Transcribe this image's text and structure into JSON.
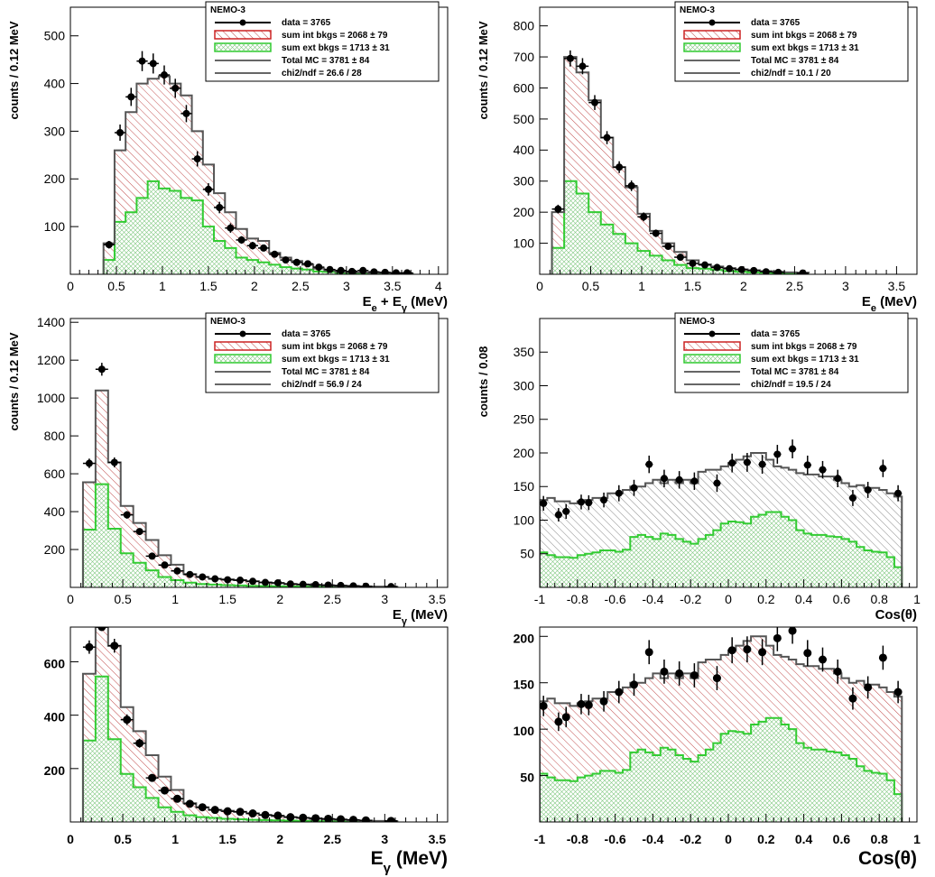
{
  "legend": {
    "title": "NEMO-3",
    "entries": {
      "data": "data = 3765",
      "int": "sum int bkgs = 2068 ± 79",
      "ext": "sum ext bkgs = 1713 ± 31",
      "total": "Total MC = 3781 ± 84"
    }
  },
  "colors": {
    "data": "#000000",
    "int_hatch": "#b22222",
    "ext_hatch": "#2e9e2e",
    "ext_line": "#33cc33",
    "total_line": "#555555"
  },
  "chart_data": [
    {
      "type": "bar",
      "id": "p1",
      "ylabel": "counts / 0.12 MeV",
      "xlabel_main": "E",
      "xlabel_parts": [
        [
          "E",
          "e",
          ""
        ],
        [
          " + E",
          "γ",
          " (MeV)"
        ]
      ],
      "xlim": [
        0,
        4.1
      ],
      "ylim": [
        0,
        560
      ],
      "xticks": [
        0,
        0.5,
        1,
        1.5,
        2,
        2.5,
        3,
        3.5,
        4
      ],
      "xtick_labels": [
        "0",
        "0.5",
        "1",
        "1.5",
        "2",
        "2.5",
        "3",
        "3.5",
        "4"
      ],
      "yticks": [
        100,
        200,
        300,
        400,
        500
      ],
      "chi2": "chi2/ndf = 26.6 / 28",
      "int_style": "diag",
      "bins": {
        "edges": [
          0.36,
          0.48,
          0.6,
          0.72,
          0.84,
          0.96,
          1.08,
          1.2,
          1.32,
          1.44,
          1.56,
          1.68,
          1.8,
          1.92,
          2.04,
          2.16,
          2.28,
          2.4,
          2.52,
          2.64,
          2.76,
          2.88,
          3.0,
          3.12,
          3.24,
          3.36,
          3.48,
          3.6,
          3.72
        ],
        "total": [
          65,
          260,
          340,
          400,
          410,
          415,
          400,
          375,
          300,
          230,
          170,
          130,
          95,
          75,
          70,
          45,
          35,
          28,
          20,
          12,
          8,
          5,
          4,
          4,
          3,
          3,
          2,
          2
        ],
        "ext": [
          30,
          110,
          130,
          160,
          195,
          180,
          175,
          160,
          155,
          100,
          70,
          55,
          35,
          30,
          25,
          20,
          15,
          12,
          10,
          6,
          5,
          3,
          2,
          2,
          2,
          1,
          1,
          1
        ]
      },
      "data_points": {
        "x": [
          0.42,
          0.54,
          0.66,
          0.78,
          0.9,
          1.02,
          1.14,
          1.26,
          1.38,
          1.5,
          1.62,
          1.74,
          1.86,
          1.98,
          2.1,
          2.22,
          2.34,
          2.46,
          2.58,
          2.7,
          2.82,
          2.94,
          3.06,
          3.18,
          3.3,
          3.42,
          3.54,
          3.66
        ],
        "y": [
          62,
          297,
          372,
          447,
          442,
          418,
          390,
          337,
          242,
          178,
          140,
          97,
          72,
          60,
          55,
          42,
          30,
          25,
          22,
          15,
          10,
          8,
          6,
          8,
          5,
          4,
          3,
          3
        ],
        "err": [
          8,
          17,
          19,
          21,
          21,
          20,
          20,
          18,
          16,
          13,
          12,
          10,
          8,
          8,
          7,
          6,
          5,
          5,
          5,
          4,
          3,
          3,
          3,
          3,
          2,
          2,
          2,
          2
        ]
      },
      "show_legend": true
    },
    {
      "type": "bar",
      "id": "p2",
      "ylabel": "counts / 0.12 MeV",
      "xlabel_parts": [
        [
          "E",
          "e",
          " (MeV)"
        ]
      ],
      "xlim": [
        0,
        3.7
      ],
      "ylim": [
        0,
        860
      ],
      "xticks": [
        0,
        0.5,
        1,
        1.5,
        2,
        2.5,
        3,
        3.5
      ],
      "xtick_labels": [
        "0",
        "0.5",
        "1",
        "1.5",
        "2",
        "2.5",
        "3",
        "3.5"
      ],
      "yticks": [
        100,
        200,
        300,
        400,
        500,
        600,
        700,
        800
      ],
      "chi2": "chi2/ndf = 10.1 / 20",
      "int_style": "diag",
      "bins": {
        "edges": [
          0.12,
          0.24,
          0.36,
          0.48,
          0.6,
          0.72,
          0.84,
          0.96,
          1.08,
          1.2,
          1.32,
          1.44,
          1.56,
          1.68,
          1.8,
          1.92,
          2.04,
          2.16,
          2.28,
          2.4,
          2.52,
          2.64
        ],
        "total": [
          200,
          700,
          650,
          560,
          440,
          345,
          280,
          195,
          140,
          100,
          72,
          45,
          32,
          25,
          20,
          16,
          13,
          10,
          8,
          6,
          5,
          4
        ],
        "ext": [
          85,
          300,
          260,
          200,
          160,
          130,
          100,
          75,
          60,
          45,
          30,
          20,
          18,
          14,
          10,
          8,
          6,
          5,
          4,
          3,
          2,
          2
        ]
      },
      "data_points": {
        "x": [
          0.18,
          0.3,
          0.42,
          0.54,
          0.66,
          0.78,
          0.9,
          1.02,
          1.14,
          1.26,
          1.38,
          1.5,
          1.62,
          1.74,
          1.86,
          1.98,
          2.1,
          2.22,
          2.34,
          2.58
        ],
        "y": [
          210,
          695,
          670,
          553,
          440,
          345,
          285,
          185,
          132,
          90,
          55,
          35,
          30,
          22,
          18,
          15,
          12,
          8,
          6,
          4
        ],
        "err": [
          14,
          26,
          26,
          24,
          21,
          19,
          17,
          14,
          12,
          10,
          8,
          6,
          6,
          5,
          4,
          4,
          4,
          3,
          3,
          2
        ]
      },
      "show_legend": true
    },
    {
      "type": "bar",
      "id": "p3",
      "ylabel": "counts / 0.12 MeV",
      "xlabel_parts": [
        [
          "E",
          "γ",
          " (MeV)"
        ]
      ],
      "xlim": [
        0,
        3.6
      ],
      "ylim": [
        0,
        1420
      ],
      "xticks": [
        0,
        0.5,
        1,
        1.5,
        2,
        2.5,
        3,
        3.5
      ],
      "xtick_labels": [
        "0",
        "0.5",
        "1",
        "1.5",
        "2",
        "2.5",
        "3",
        "3.5"
      ],
      "yticks": [
        200,
        400,
        600,
        800,
        1000,
        1200,
        1400
      ],
      "chi2": "chi2/ndf = 56.9 / 24",
      "int_style": "diag",
      "bins": {
        "edges": [
          0.12,
          0.24,
          0.36,
          0.48,
          0.6,
          0.72,
          0.84,
          0.96,
          1.08,
          1.2,
          1.32,
          1.44,
          1.56,
          1.68,
          1.8,
          1.92,
          2.04,
          2.16,
          2.28,
          2.4,
          2.52,
          2.64,
          2.76,
          2.88,
          3.0,
          3.12
        ],
        "total": [
          555,
          1040,
          660,
          430,
          340,
          250,
          170,
          120,
          70,
          55,
          45,
          42,
          38,
          32,
          26,
          22,
          18,
          15,
          12,
          10,
          8,
          6,
          5,
          4,
          3
        ],
        "ext": [
          305,
          545,
          310,
          180,
          130,
          90,
          55,
          38,
          25,
          18,
          15,
          12,
          10,
          8,
          7,
          6,
          5,
          4,
          3,
          3,
          2,
          2,
          1,
          1,
          1
        ]
      },
      "data_points": {
        "x": [
          0.18,
          0.3,
          0.42,
          0.54,
          0.66,
          0.78,
          0.9,
          1.02,
          1.14,
          1.26,
          1.38,
          1.5,
          1.62,
          1.74,
          1.86,
          1.98,
          2.1,
          2.22,
          2.34,
          2.46,
          2.58,
          2.7,
          2.82,
          3.06
        ],
        "y": [
          655,
          1152,
          660,
          383,
          295,
          165,
          118,
          87,
          68,
          55,
          45,
          40,
          38,
          32,
          26,
          24,
          18,
          16,
          14,
          12,
          10,
          8,
          6,
          4
        ],
        "err": [
          25,
          34,
          26,
          20,
          17,
          13,
          11,
          9,
          8,
          7,
          7,
          6,
          6,
          6,
          5,
          5,
          4,
          4,
          4,
          3,
          3,
          3,
          2,
          2
        ]
      },
      "show_legend": true
    },
    {
      "type": "bar",
      "id": "p4",
      "ylabel": "counts / 0.08",
      "xlabel_parts": [
        [
          "Cos(θ)",
          "",
          ""
        ]
      ],
      "xlim": [
        -1,
        1
      ],
      "ylim": [
        0,
        400
      ],
      "xticks": [
        -1,
        -0.8,
        -0.6,
        -0.4,
        -0.2,
        0,
        0.2,
        0.4,
        0.6,
        0.8,
        1
      ],
      "xtick_labels": [
        "-1",
        "-0.8",
        "-0.6",
        "-0.4",
        "-0.2",
        "0",
        "0.2",
        "0.4",
        "0.6",
        "0.8",
        "1"
      ],
      "yticks": [
        50,
        100,
        150,
        200,
        250,
        300,
        350
      ],
      "chi2": "chi2/ndf = 19.5 / 24",
      "int_style": "diag_gray",
      "bins": {
        "edges": [
          -1.0,
          -0.96,
          -0.92,
          -0.88,
          -0.84,
          -0.8,
          -0.76,
          -0.72,
          -0.68,
          -0.64,
          -0.6,
          -0.56,
          -0.52,
          -0.48,
          -0.44,
          -0.4,
          -0.36,
          -0.32,
          -0.28,
          -0.24,
          -0.2,
          -0.16,
          -0.12,
          -0.08,
          -0.04,
          0.0,
          0.04,
          0.08,
          0.12,
          0.16,
          0.2,
          0.24,
          0.28,
          0.32,
          0.36,
          0.4,
          0.44,
          0.48,
          0.52,
          0.56,
          0.6,
          0.64,
          0.68,
          0.72,
          0.76,
          0.8,
          0.84,
          0.88,
          0.92
        ],
        "total": [
          130,
          133,
          128,
          128,
          125,
          128,
          130,
          133,
          133,
          140,
          140,
          145,
          150,
          150,
          155,
          160,
          155,
          160,
          155,
          160,
          155,
          172,
          175,
          175,
          180,
          185,
          190,
          195,
          200,
          200,
          190,
          180,
          178,
          175,
          170,
          168,
          168,
          165,
          165,
          160,
          155,
          150,
          152,
          148,
          148,
          145,
          140,
          135
        ],
        "ext": [
          52,
          48,
          45,
          45,
          44,
          48,
          50,
          52,
          55,
          55,
          53,
          56,
          75,
          78,
          75,
          72,
          80,
          78,
          72,
          68,
          65,
          72,
          78,
          85,
          95,
          98,
          97,
          95,
          105,
          108,
          112,
          112,
          105,
          100,
          85,
          80,
          78,
          78,
          76,
          75,
          72,
          68,
          60,
          55,
          53,
          52,
          45,
          30
        ]
      },
      "data_points": {
        "x": [
          -0.98,
          -0.9,
          -0.86,
          -0.78,
          -0.74,
          -0.66,
          -0.58,
          -0.5,
          -0.42,
          -0.34,
          -0.26,
          -0.18,
          -0.06,
          0.02,
          0.1,
          0.18,
          0.26,
          0.34,
          0.42,
          0.5,
          0.58,
          0.66,
          0.74,
          0.82,
          0.9
        ],
        "y": [
          125,
          108,
          113,
          127,
          126,
          130,
          140,
          148,
          183,
          162,
          160,
          158,
          155,
          185,
          186,
          183,
          198,
          206,
          182,
          175,
          162,
          133,
          145,
          177,
          140
        ],
        "err": [
          11,
          10,
          11,
          11,
          11,
          11,
          12,
          12,
          13,
          13,
          13,
          13,
          13,
          14,
          14,
          14,
          14,
          14,
          14,
          13,
          13,
          12,
          12,
          13,
          12
        ]
      },
      "show_legend": true
    },
    {
      "type": "bar",
      "id": "p5",
      "ylabel": "",
      "xlabel_parts": [
        [
          "E",
          "γ",
          " (MeV)"
        ]
      ],
      "xlim": [
        0,
        3.6
      ],
      "ylim": [
        0,
        730
      ],
      "xticks": [
        0,
        0.5,
        1,
        1.5,
        2,
        2.5,
        3,
        3.5
      ],
      "xtick_labels": [
        "0",
        "0.5",
        "1",
        "1.5",
        "2",
        "2.5",
        "3",
        "3.5"
      ],
      "yticks": [
        200,
        400,
        600
      ],
      "int_style": "diag",
      "ref": "p3",
      "show_legend": false
    },
    {
      "type": "bar",
      "id": "p6",
      "ylabel": "",
      "xlabel_parts": [
        [
          "Cos(θ)",
          "",
          ""
        ]
      ],
      "xlim": [
        -1,
        1
      ],
      "ylim": [
        0,
        210
      ],
      "xticks": [
        -1,
        -0.8,
        -0.6,
        -0.4,
        -0.2,
        0,
        0.2,
        0.4,
        0.6,
        0.8,
        1
      ],
      "xtick_labels": [
        "-1",
        "-0.8",
        "-0.6",
        "-0.4",
        "-0.2",
        "0",
        "0.2",
        "0.4",
        "0.6",
        "0.8",
        "1"
      ],
      "yticks": [
        50,
        100,
        150,
        200
      ],
      "int_style": "diag_red",
      "ref": "p4",
      "show_legend": false
    }
  ]
}
